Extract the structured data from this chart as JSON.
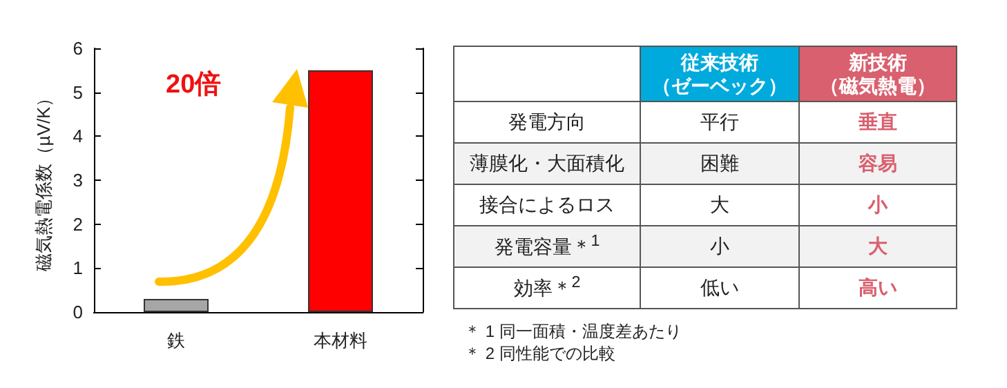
{
  "chart_data": [
    {
      "type": "bar",
      "ylabel": "磁気熱電係数（µV/K）",
      "categories": [
        "鉄",
        "本材料"
      ],
      "values": [
        0.3,
        5.5
      ],
      "colors": [
        "#a6a6a6",
        "#ff0000"
      ],
      "ylim": [
        0,
        6
      ],
      "yticks": [
        0,
        1,
        2,
        3,
        4,
        5,
        6
      ],
      "grid": false,
      "annotations": [
        "20倍"
      ]
    },
    {
      "type": "other",
      "categories": [
        null,
        "従来技術（ゼーベック）",
        "新技術（磁気熱電）"
      ],
      "colors": [
        null,
        "#00aadc",
        "#d9606e"
      ],
      "y_categories": [
        "発電方向",
        "薄膜化・大面積化",
        "接合によるロス",
        "発電容量＊$^{1}$",
        "効率＊$^{2}$"
      ],
      "cell_labels": [
        [
          "平行",
          "垂直"
        ],
        [
          "困難",
          "容易"
        ],
        [
          "大",
          "小"
        ],
        [
          "小",
          "大"
        ],
        [
          "低い",
          "高い"
        ]
      ],
      "annotations": [
        "＊ 1 同一面積・温度差あたり",
        "＊ 2 同性能での比較"
      ]
    }
  ]
}
